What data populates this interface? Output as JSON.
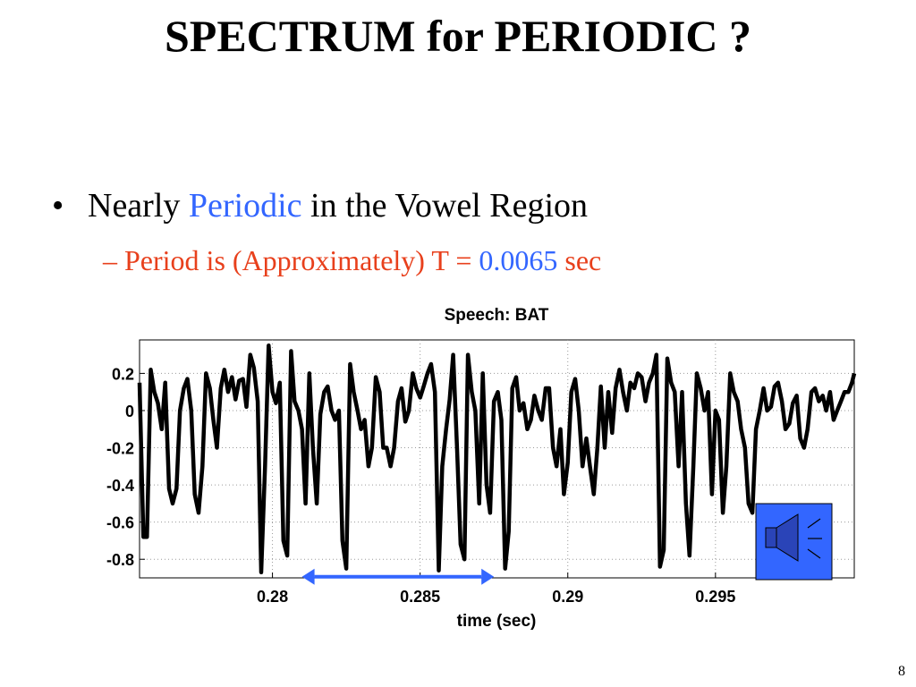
{
  "slide": {
    "title": "SPECTRUM for PERIODIC ?",
    "bullet": {
      "marker": "•",
      "prefix": "Nearly ",
      "highlight": "Periodic",
      "suffix": " in the Vowel Region"
    },
    "subbullet": {
      "prefix": "– Period is (Approximately) T = ",
      "value": "0.0065",
      "suffix": " sec"
    },
    "page_number": "8"
  },
  "colors": {
    "accent_blue": "#3366ff",
    "accent_red": "#e8401c",
    "arrow": "#3366ff",
    "speaker_button": "#3366ff"
  },
  "speaker_button": {
    "icon": "speaker-icon"
  },
  "chart_data": {
    "type": "line",
    "title": "Speech:  BAT",
    "xlabel": "time (sec)",
    "ylabel": "",
    "xlim": [
      0.2755,
      0.2997
    ],
    "ylim": [
      -0.9,
      0.38
    ],
    "xticks": [
      0.28,
      0.285,
      0.29,
      0.295
    ],
    "xtick_labels": [
      "0.28",
      "0.285",
      "0.29",
      "0.295"
    ],
    "yticks": [
      0.2,
      0,
      -0.2,
      -0.4,
      -0.6,
      -0.8
    ],
    "ytick_labels": [
      "0.2",
      "0",
      "-0.2",
      "-0.4",
      "-0.6",
      "-0.8"
    ],
    "grid": true,
    "series": [
      {
        "color": "#000000",
        "x": [
          0.2755,
          0.27563,
          0.27575,
          0.27588,
          0.276,
          0.27612,
          0.27625,
          0.27637,
          0.2765,
          0.27662,
          0.27675,
          0.27687,
          0.277,
          0.27712,
          0.27725,
          0.27737,
          0.2775,
          0.27763,
          0.27775,
          0.27788,
          0.278,
          0.27812,
          0.27825,
          0.27837,
          0.2785,
          0.27863,
          0.27875,
          0.27887,
          0.279,
          0.27912,
          0.27925,
          0.27937,
          0.2795,
          0.27962,
          0.27975,
          0.27987,
          0.28,
          0.28012,
          0.28025,
          0.28037,
          0.2805,
          0.28063,
          0.28075,
          0.28088,
          0.281,
          0.28112,
          0.28125,
          0.28137,
          0.2815,
          0.28162,
          0.28175,
          0.28187,
          0.282,
          0.28212,
          0.28225,
          0.28237,
          0.2825,
          0.28263,
          0.28275,
          0.28288,
          0.283,
          0.28312,
          0.28325,
          0.28337,
          0.2835,
          0.28363,
          0.28375,
          0.28387,
          0.284,
          0.28412,
          0.28425,
          0.28437,
          0.2845,
          0.28462,
          0.28475,
          0.28487,
          0.285,
          0.28512,
          0.28525,
          0.28537,
          0.2855,
          0.28563,
          0.28575,
          0.28588,
          0.286,
          0.28612,
          0.28625,
          0.28637,
          0.2865,
          0.28662,
          0.28675,
          0.28687,
          0.287,
          0.28712,
          0.28725,
          0.28737,
          0.2875,
          0.28763,
          0.28775,
          0.28788,
          0.288,
          0.28812,
          0.28825,
          0.28837,
          0.2885,
          0.28863,
          0.28875,
          0.28887,
          0.289,
          0.28912,
          0.28925,
          0.28937,
          0.2895,
          0.28962,
          0.28975,
          0.28987,
          0.29,
          0.29012,
          0.29025,
          0.29037,
          0.2905,
          0.29063,
          0.29075,
          0.29088,
          0.291,
          0.29112,
          0.29125,
          0.29137,
          0.2915,
          0.29162,
          0.29175,
          0.29187,
          0.292,
          0.29212,
          0.29225,
          0.29237,
          0.2925,
          0.29263,
          0.29275,
          0.29288,
          0.293,
          0.29312,
          0.29325,
          0.29337,
          0.2935,
          0.29362,
          0.29375,
          0.29387,
          0.294,
          0.29412,
          0.29425,
          0.29437,
          0.2945,
          0.29463,
          0.29475,
          0.29488,
          0.295,
          0.29512,
          0.29525,
          0.29537,
          0.2955,
          0.29562,
          0.29575,
          0.29587,
          0.296,
          0.29612,
          0.29625,
          0.29637,
          0.2965,
          0.29663,
          0.29675,
          0.29688,
          0.297,
          0.29712,
          0.29725,
          0.29737,
          0.2975,
          0.29762,
          0.29775,
          0.29787,
          0.298,
          0.29812,
          0.29825,
          0.29837,
          0.2985,
          0.29863,
          0.29875,
          0.29888,
          0.299,
          0.29912,
          0.29925,
          0.29937,
          0.2995,
          0.29962,
          0.2997
        ],
        "y": [
          0.15,
          -0.68,
          -0.68,
          0.22,
          0.1,
          0.04,
          -0.1,
          0.15,
          -0.42,
          -0.5,
          -0.42,
          0.0,
          0.12,
          0.17,
          0.0,
          -0.45,
          -0.55,
          -0.3,
          0.2,
          0.12,
          -0.05,
          -0.2,
          0.12,
          0.22,
          0.1,
          0.18,
          0.06,
          0.16,
          0.17,
          0.02,
          0.3,
          0.23,
          0.05,
          -0.87,
          -0.3,
          0.35,
          0.1,
          0.04,
          0.15,
          -0.7,
          -0.78,
          0.32,
          0.05,
          0.0,
          -0.1,
          -0.5,
          0.2,
          -0.2,
          -0.5,
          -0.02,
          0.1,
          0.13,
          0.0,
          -0.05,
          0.0,
          -0.7,
          -0.85,
          0.25,
          0.1,
          0.0,
          -0.1,
          -0.05,
          -0.3,
          -0.2,
          0.18,
          0.1,
          -0.2,
          -0.2,
          -0.3,
          -0.2,
          0.05,
          0.12,
          -0.06,
          0.0,
          0.2,
          0.12,
          0.07,
          0.13,
          0.2,
          0.25,
          0.1,
          -0.86,
          -0.3,
          -0.1,
          0.06,
          0.3,
          -0.2,
          -0.72,
          -0.8,
          0.3,
          0.1,
          0.0,
          -0.5,
          0.2,
          -0.4,
          -0.55,
          0.05,
          0.1,
          -0.05,
          -0.85,
          -0.65,
          0.12,
          0.18,
          0.0,
          0.04,
          -0.1,
          -0.05,
          0.08,
          0.0,
          -0.05,
          0.12,
          0.12,
          -0.2,
          -0.3,
          -0.1,
          -0.45,
          -0.28,
          0.1,
          0.17,
          0.0,
          -0.3,
          -0.15,
          -0.3,
          -0.45,
          -0.2,
          0.13,
          -0.2,
          0.1,
          -0.12,
          0.12,
          0.22,
          0.1,
          0.0,
          0.15,
          0.12,
          0.2,
          0.18,
          0.05,
          0.15,
          0.2,
          0.3,
          -0.84,
          -0.75,
          0.28,
          0.15,
          0.1,
          -0.3,
          0.1,
          -0.5,
          -0.78,
          -0.3,
          0.2,
          0.12,
          0.0,
          0.1,
          -0.45,
          0.0,
          -0.05,
          -0.55,
          -0.3,
          0.2,
          0.1,
          0.05,
          -0.1,
          -0.2,
          -0.5,
          -0.55,
          -0.1,
          0.0,
          0.12,
          0.0,
          0.02,
          0.13,
          0.15,
          0.05,
          -0.1,
          -0.07,
          0.04,
          0.08,
          -0.15,
          -0.2,
          -0.1,
          0.1,
          0.12,
          0.05,
          0.08,
          0.0,
          0.1,
          -0.05,
          0.0,
          0.05,
          0.1,
          0.1,
          0.15,
          0.2
        ]
      }
    ],
    "annotation": {
      "type": "double-arrow",
      "from_x": 0.281,
      "to_x": 0.2875,
      "y": -0.87,
      "color": "#3366ff"
    }
  }
}
